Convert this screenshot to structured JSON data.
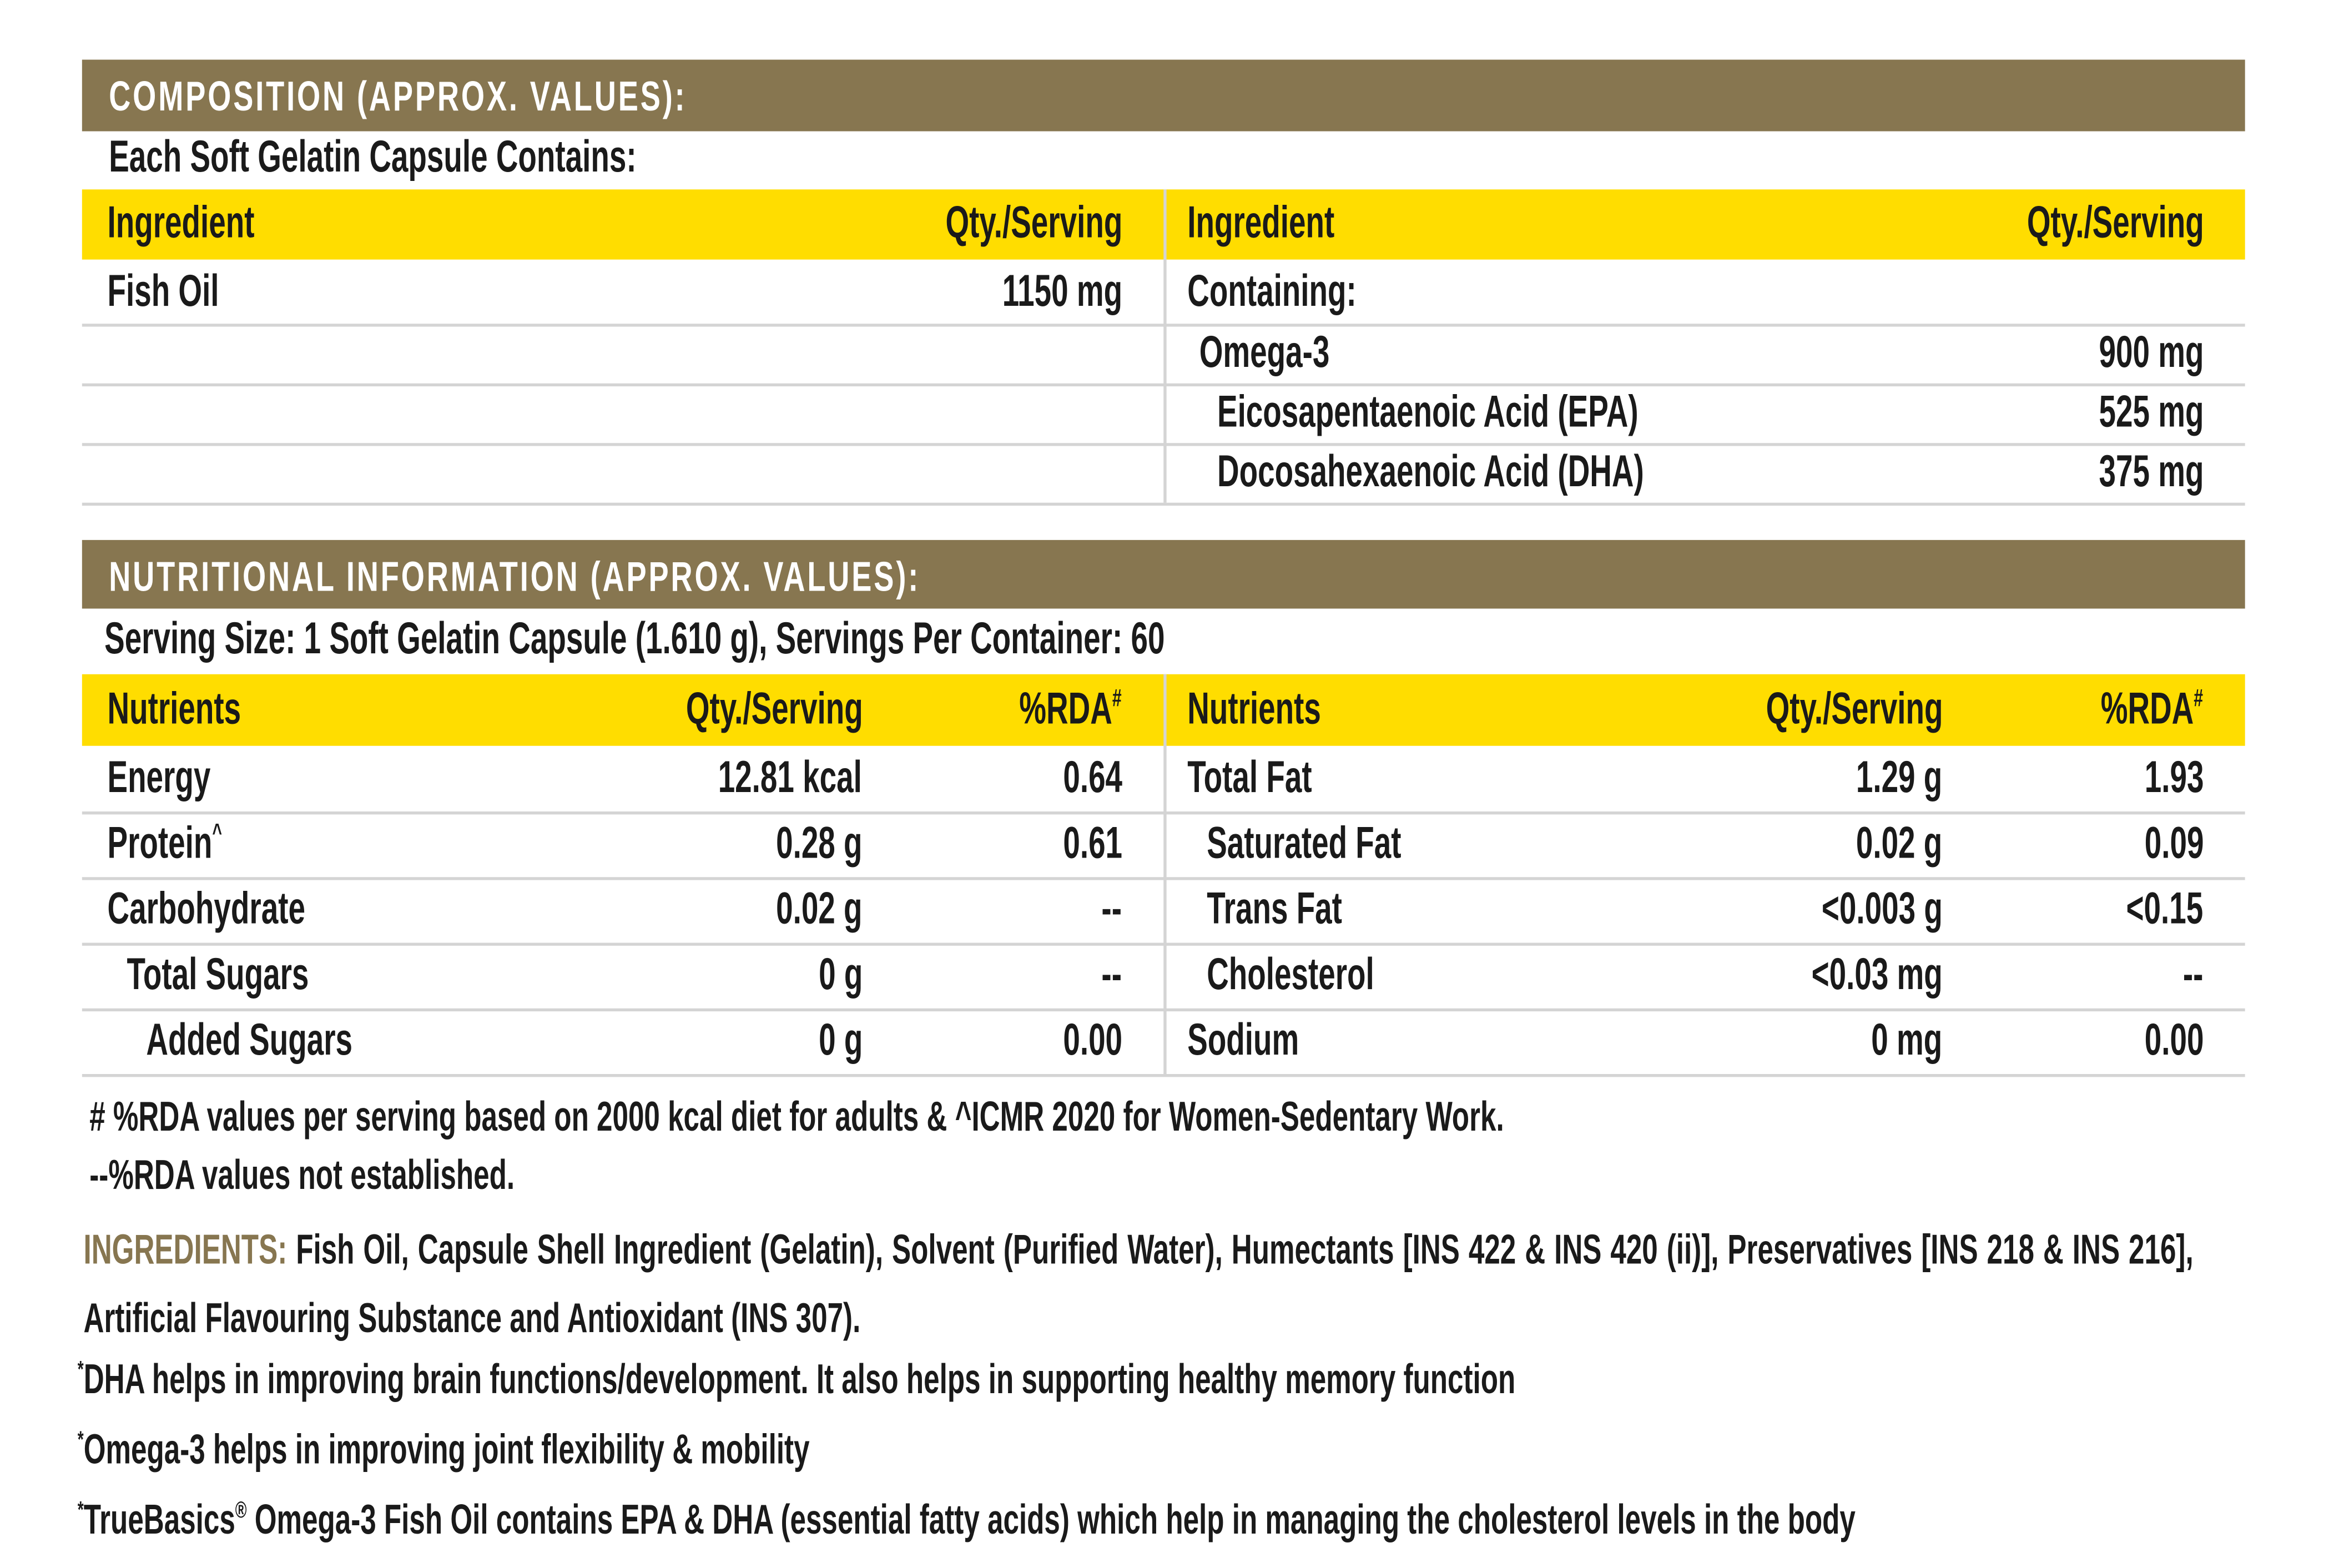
{
  "composition": {
    "title": "COMPOSITION (APPROX. VALUES):",
    "subtitle": "Each Soft Gelatin Capsule Contains:",
    "headers": {
      "ingredient": "Ingredient",
      "qty": "Qty./Serving"
    },
    "left_rows": [
      {
        "ingredient": "Fish Oil",
        "qty": "1150 mg"
      }
    ],
    "right_rows": [
      {
        "ingredient": "Containing:"
      },
      {
        "ingredient": "Omega-3",
        "qty": "900 mg"
      },
      {
        "ingredient": "Eicosapentaenoic Acid (EPA)",
        "qty": "525 mg"
      },
      {
        "ingredient": "Docosahexaenoic Acid (DHA)",
        "qty": "375 mg"
      }
    ]
  },
  "nutrition": {
    "title": "NUTRITIONAL INFORMATION (APPROX. VALUES):",
    "serving": "Serving Size: 1 Soft Gelatin Capsule (1.610 g), Servings Per Container: 60",
    "headers": {
      "nutrient": "Nutrients",
      "qty": "Qty./Serving",
      "rda": "%RDA",
      "rda_mark": "#"
    },
    "left_rows": [
      {
        "nutrient": "Energy",
        "qty": "12.81 kcal",
        "rda": "0.64"
      },
      {
        "nutrient": "Protein",
        "mark": "^",
        "qty": "0.28 g",
        "rda": "0.61"
      },
      {
        "nutrient": "Carbohydrate",
        "qty": "0.02 g",
        "rda": "--"
      },
      {
        "nutrient": "Total Sugars",
        "qty": "0 g",
        "rda": "--"
      },
      {
        "nutrient": "Added Sugars",
        "qty": "0 g",
        "rda": "0.00"
      }
    ],
    "right_rows": [
      {
        "nutrient": "Total Fat",
        "qty": "1.29 g",
        "rda": "1.93"
      },
      {
        "nutrient": "Saturated Fat",
        "qty": "0.02 g",
        "rda": "0.09"
      },
      {
        "nutrient": "Trans Fat",
        "qty": "<0.003 g",
        "rda": "<0.15"
      },
      {
        "nutrient": "Cholesterol",
        "qty": "<0.03 mg",
        "rda": "--"
      },
      {
        "nutrient": "Sodium",
        "qty": "0 mg",
        "rda": "0.00"
      }
    ]
  },
  "footnotes": [
    "# %RDA values per serving based on 2000 kcal diet for adults & ^ICMR 2020 for Women-Sedentary Work.",
    "--%RDA values not established."
  ],
  "ingredients": {
    "label": "INGREDIENTS:",
    "text": "Fish Oil, Capsule Shell Ingredient (Gelatin), Solvent (Purified Water), Humectants [INS 422 & INS 420 (ii)], Preservatives [INS 218 & INS 216], Artificial Flavouring Substance and Antioxidant (INS 307)."
  },
  "claims": [
    {
      "mark": "*",
      "parts": [
        {
          "text": "DHA helps in improving brain functions/development. It also helps in supporting healthy memory function"
        }
      ]
    },
    {
      "mark": "*",
      "parts": [
        {
          "text": "Omega-3 helps in improving joint flexibility & mobility"
        }
      ]
    },
    {
      "mark": "*",
      "parts": [
        {
          "text": "TrueBasics"
        },
        {
          "text": "®",
          "sup": true
        },
        {
          "text": " Omega-3 Fish Oil contains EPA & DHA (essential fatty acids) which help in managing the cholesterol levels in the body"
        }
      ]
    }
  ]
}
